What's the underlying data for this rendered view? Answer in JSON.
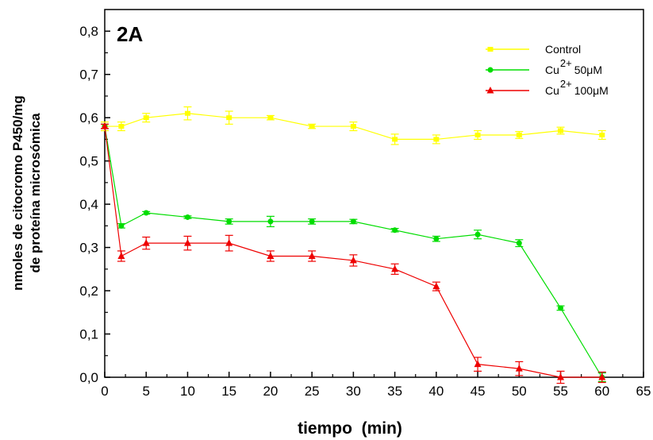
{
  "chart_data": {
    "type": "line",
    "panel_label": "2A",
    "xlabel": "tiempo  (min)",
    "ylabel_line1": "nmoles de citocromo P450/mg",
    "ylabel_line2": "de proteína microsómica",
    "xlim": [
      0,
      65
    ],
    "ylim": [
      0.0,
      0.85
    ],
    "x_ticks": [
      0,
      5,
      10,
      15,
      20,
      25,
      30,
      35,
      40,
      45,
      50,
      55,
      60,
      65
    ],
    "y_ticks": [
      0.0,
      0.1,
      0.2,
      0.3,
      0.4,
      0.5,
      0.6,
      0.7,
      0.8
    ],
    "y_tick_labels": [
      "0,0",
      "0,1",
      "0,2",
      "0,3",
      "0,4",
      "0,5",
      "0,6",
      "0,7",
      "0,8"
    ],
    "grid": false,
    "legend_position": "top-right",
    "series": [
      {
        "legend": {
          "base": "Control",
          "sup": "",
          "suffix": ""
        },
        "color": "#ffff00",
        "marker": "square",
        "x": [
          0,
          2,
          5,
          10,
          15,
          20,
          25,
          30,
          35,
          40,
          45,
          50,
          55,
          60
        ],
        "y": [
          0.58,
          0.58,
          0.6,
          0.61,
          0.6,
          0.6,
          0.58,
          0.58,
          0.55,
          0.55,
          0.56,
          0.56,
          0.57,
          0.56
        ],
        "err": [
          0.01,
          0.01,
          0.01,
          0.015,
          0.015,
          0.005,
          0.005,
          0.01,
          0.012,
          0.01,
          0.01,
          0.008,
          0.008,
          0.01
        ]
      },
      {
        "legend": {
          "base": "Cu",
          "sup": "2+",
          "suffix": " 50μM"
        },
        "color": "#00dd00",
        "marker": "circle",
        "x": [
          0,
          2,
          5,
          10,
          15,
          20,
          25,
          30,
          35,
          40,
          45,
          50,
          55,
          60
        ],
        "y": [
          0.58,
          0.35,
          0.38,
          0.37,
          0.36,
          0.36,
          0.36,
          0.36,
          0.34,
          0.32,
          0.33,
          0.31,
          0.16,
          0.0
        ],
        "err": [
          0.005,
          0.005,
          0.003,
          0.003,
          0.006,
          0.012,
          0.006,
          0.005,
          0.004,
          0.006,
          0.01,
          0.008,
          0.005,
          0.01
        ]
      },
      {
        "legend": {
          "base": "Cu",
          "sup": "2+",
          "suffix": " 100μM"
        },
        "color": "#ee0000",
        "marker": "triangle",
        "x": [
          0,
          2,
          5,
          10,
          15,
          20,
          25,
          30,
          35,
          40,
          45,
          50,
          55,
          60
        ],
        "y": [
          0.58,
          0.28,
          0.31,
          0.31,
          0.31,
          0.28,
          0.28,
          0.27,
          0.25,
          0.21,
          0.03,
          0.02,
          0.0,
          0.0
        ],
        "err": [
          0.005,
          0.012,
          0.014,
          0.016,
          0.018,
          0.012,
          0.012,
          0.013,
          0.012,
          0.01,
          0.016,
          0.016,
          0.014,
          0.012
        ]
      }
    ]
  }
}
